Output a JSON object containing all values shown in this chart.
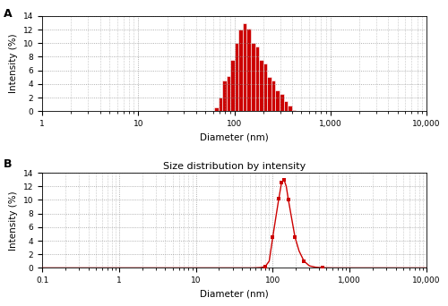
{
  "panel_A": {
    "panel_label": "A",
    "xlabel": "Diameter (nm)",
    "ylabel": "Intensity (%)",
    "xlim_log": [
      1,
      10000
    ],
    "ylim": [
      0,
      14
    ],
    "yticks": [
      0,
      2,
      4,
      6,
      8,
      10,
      12,
      14
    ],
    "xticks_major": [
      1,
      10,
      100,
      1000,
      10000
    ],
    "bar_color": "#cc0000",
    "bar_edges_nm": [
      62,
      68,
      75,
      83,
      91,
      101,
      111,
      122,
      135,
      149,
      164,
      181,
      200,
      220,
      243,
      268,
      296,
      326,
      360,
      397,
      438,
      483
    ],
    "bar_heights": [
      0.5,
      2.0,
      4.5,
      5.2,
      7.5,
      10.0,
      12.0,
      13.0,
      12.2,
      10.0,
      9.5,
      7.5,
      7.0,
      5.0,
      4.5,
      3.0,
      2.5,
      1.5,
      0.8,
      0.2,
      0.05
    ]
  },
  "panel_B": {
    "title": "Size distribution by intensity",
    "panel_label": "B",
    "xlabel": "Diameter (nm)",
    "ylabel": "Intensity (%)",
    "xlim_log": [
      0.1,
      10000
    ],
    "ylim": [
      0,
      14
    ],
    "yticks": [
      0,
      2,
      4,
      6,
      8,
      10,
      12,
      14
    ],
    "xticks_major": [
      0.1,
      1,
      10,
      100,
      1000,
      10000
    ],
    "line_color": "#cc0000",
    "marker_size": 3.5,
    "curve_x_nm": [
      0.1,
      0.3,
      0.6,
      1,
      2,
      4,
      7,
      12,
      20,
      35,
      55,
      70,
      80,
      90,
      100,
      110,
      120,
      130,
      140,
      150,
      160,
      175,
      195,
      220,
      255,
      300,
      360,
      450,
      600,
      800,
      1200,
      2000,
      4000,
      10000
    ],
    "curve_y": [
      0,
      0,
      0,
      0,
      0,
      0,
      0,
      0,
      0,
      0,
      0,
      0.05,
      0.2,
      1.0,
      4.5,
      7.5,
      10.2,
      12.5,
      13.0,
      12.0,
      10.0,
      7.5,
      4.5,
      2.5,
      1.0,
      0.3,
      0.1,
      0.02,
      0,
      0,
      0,
      0,
      0,
      0
    ],
    "marker_x_nm": [
      80,
      100,
      120,
      130,
      140,
      160,
      195,
      255,
      450
    ],
    "marker_y": [
      0.2,
      4.5,
      10.2,
      12.5,
      13.0,
      10.0,
      4.5,
      1.0,
      0.02
    ]
  },
  "background_color": "#ffffff",
  "grid_color": "#999999",
  "font_size_label": 7.5,
  "font_size_tick": 6.5,
  "font_size_panel_label": 9,
  "font_size_title": 8
}
